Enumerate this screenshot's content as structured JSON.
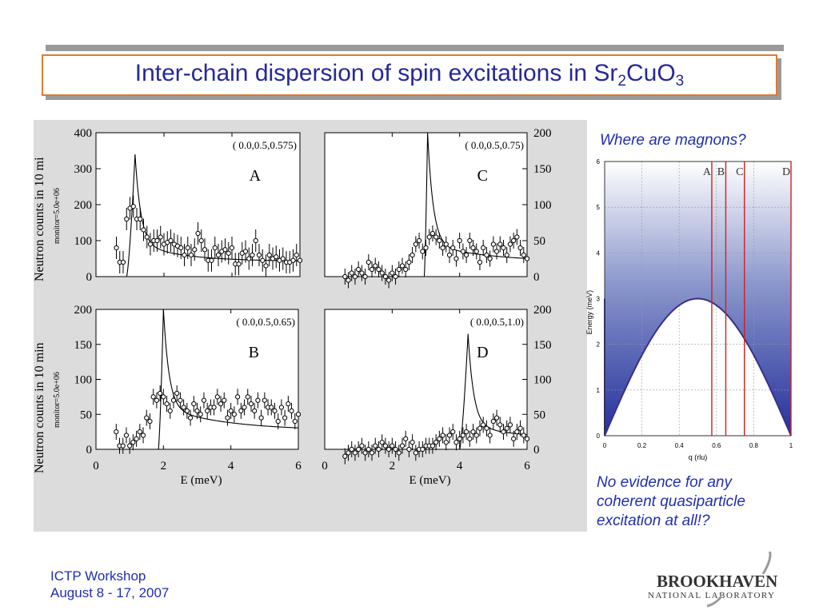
{
  "title": {
    "main": "Inter-chain dispersion of spin excitations in Sr",
    "sub1": "2",
    "mid": "CuO",
    "sub2": "3"
  },
  "right_top_note": "Where are magnons?",
  "right_bottom_note": [
    "No evidence for any",
    "coherent quasiparticle",
    "excitation at all!?"
  ],
  "footer": [
    "ICTP Workshop",
    "August 8 - 17, 2007"
  ],
  "logo": {
    "name": "BROOKHAVEN",
    "subtitle": "NATIONAL LABORATORY"
  },
  "figure": {
    "ylabel_top": "Neutron counts in 10 mi",
    "ylabel_bottom": "Neutron counts in 10 min",
    "monitor_label": "monitor=5.0e+06",
    "xlabel": "E (meV)",
    "x_ticks": [
      "0",
      "2",
      "4",
      "6"
    ]
  },
  "chart_data": [
    {
      "type": "scatter",
      "panel": "A",
      "q_label": "( 0.0,0.5,0.575)",
      "xlim": [
        0,
        6
      ],
      "ylim": [
        0,
        400
      ],
      "y_ticks": [
        0,
        100,
        200,
        300,
        400
      ],
      "x": [
        0.6,
        0.7,
        0.8,
        0.9,
        1.0,
        1.1,
        1.2,
        1.3,
        1.4,
        1.5,
        1.6,
        1.7,
        1.8,
        1.9,
        2.0,
        2.1,
        2.2,
        2.3,
        2.4,
        2.5,
        2.6,
        2.7,
        2.8,
        2.9,
        3.0,
        3.1,
        3.2,
        3.3,
        3.4,
        3.5,
        3.6,
        3.7,
        3.8,
        3.9,
        4.0,
        4.1,
        4.2,
        4.3,
        4.4,
        4.5,
        4.6,
        4.7,
        4.8,
        4.9,
        5.0,
        5.1,
        5.2,
        5.3,
        5.4,
        5.5,
        5.6,
        5.7,
        5.8,
        5.9,
        6.0
      ],
      "y": [
        80,
        40,
        40,
        160,
        190,
        195,
        160,
        160,
        130,
        110,
        90,
        100,
        100,
        110,
        90,
        95,
        100,
        90,
        85,
        80,
        60,
        80,
        60,
        75,
        120,
        100,
        75,
        45,
        45,
        80,
        60,
        70,
        75,
        65,
        80,
        35,
        35,
        65,
        70,
        50,
        60,
        100,
        60,
        45,
        30,
        60,
        50,
        55,
        45,
        50,
        40,
        40,
        45,
        60,
        45
      ],
      "fit": {
        "onset": 0.9,
        "peak_x": 1.15,
        "peak_y": 340,
        "tail_a": 95,
        "tail_b": 0.78
      }
    },
    {
      "type": "scatter",
      "panel": "C",
      "q_label": "( 0.0,0.5,0.75)",
      "xlim": [
        0,
        6
      ],
      "ylim": [
        0,
        200
      ],
      "y_ticks": [
        0,
        50,
        100,
        150,
        200
      ],
      "x": [
        0.6,
        0.7,
        0.8,
        0.9,
        1.0,
        1.1,
        1.2,
        1.3,
        1.4,
        1.5,
        1.6,
        1.7,
        1.8,
        1.9,
        2.0,
        2.1,
        2.2,
        2.3,
        2.4,
        2.5,
        2.6,
        2.7,
        2.8,
        2.9,
        3.0,
        3.1,
        3.2,
        3.3,
        3.4,
        3.5,
        3.6,
        3.7,
        3.8,
        3.9,
        4.0,
        4.1,
        4.2,
        4.3,
        4.4,
        4.5,
        4.6,
        4.7,
        4.8,
        4.9,
        5.0,
        5.1,
        5.2,
        5.3,
        5.4,
        5.5,
        5.6,
        5.7,
        5.8,
        5.9,
        6.0
      ],
      "y": [
        0,
        -5,
        5,
        0,
        10,
        5,
        0,
        20,
        10,
        15,
        10,
        5,
        0,
        -5,
        5,
        0,
        10,
        15,
        10,
        20,
        30,
        45,
        50,
        35,
        40,
        55,
        60,
        55,
        50,
        40,
        45,
        30,
        40,
        25,
        50,
        35,
        30,
        50,
        40,
        35,
        20,
        40,
        30,
        25,
        45,
        35,
        45,
        40,
        30,
        45,
        50,
        55,
        40,
        30,
        25
      ],
      "fit": {
        "onset": 2.95,
        "peak_x": 3.05,
        "peak_y": 200,
        "tail_a": 45,
        "tail_b": 0.55
      }
    },
    {
      "type": "scatter",
      "panel": "B",
      "q_label": "( 0.0,0.5,0.65)",
      "xlim": [
        0,
        6
      ],
      "ylim": [
        0,
        200
      ],
      "y_ticks": [
        0,
        50,
        100,
        150,
        200
      ],
      "x": [
        0.6,
        0.7,
        0.8,
        0.9,
        1.0,
        1.1,
        1.2,
        1.3,
        1.4,
        1.5,
        1.6,
        1.7,
        1.8,
        1.9,
        2.0,
        2.1,
        2.2,
        2.3,
        2.4,
        2.5,
        2.6,
        2.7,
        2.8,
        2.9,
        3.0,
        3.1,
        3.2,
        3.3,
        3.4,
        3.5,
        3.6,
        3.7,
        3.8,
        3.9,
        4.0,
        4.1,
        4.2,
        4.3,
        4.4,
        4.5,
        4.6,
        4.7,
        4.8,
        4.9,
        5.0,
        5.1,
        5.2,
        5.3,
        5.4,
        5.5,
        5.6,
        5.7,
        5.8,
        5.9,
        6.0
      ],
      "y": [
        25,
        5,
        5,
        20,
        5,
        10,
        15,
        25,
        20,
        45,
        40,
        75,
        70,
        80,
        75,
        65,
        55,
        70,
        80,
        70,
        60,
        55,
        45,
        65,
        55,
        50,
        70,
        55,
        60,
        60,
        75,
        65,
        70,
        45,
        55,
        50,
        75,
        55,
        60,
        75,
        65,
        55,
        70,
        45,
        70,
        60,
        60,
        55,
        40,
        60,
        45,
        65,
        55,
        40,
        50
      ],
      "fit": {
        "onset": 1.85,
        "peak_x": 2.0,
        "peak_y": 200,
        "tail_a": 60,
        "tail_b": 0.55
      }
    },
    {
      "type": "scatter",
      "panel": "D",
      "q_label": "( 0.0,0.5,1.0)",
      "xlim": [
        0,
        6
      ],
      "ylim": [
        0,
        200
      ],
      "y_ticks": [
        0,
        50,
        100,
        150,
        200
      ],
      "x": [
        0.6,
        0.7,
        0.8,
        0.9,
        1.0,
        1.1,
        1.2,
        1.3,
        1.4,
        1.5,
        1.6,
        1.7,
        1.8,
        1.9,
        2.0,
        2.1,
        2.2,
        2.3,
        2.4,
        2.5,
        2.6,
        2.7,
        2.8,
        2.9,
        3.0,
        3.1,
        3.2,
        3.3,
        3.4,
        3.5,
        3.6,
        3.7,
        3.8,
        3.9,
        4.0,
        4.1,
        4.2,
        4.3,
        4.4,
        4.5,
        4.6,
        4.7,
        4.8,
        4.9,
        5.0,
        5.1,
        5.2,
        5.3,
        5.4,
        5.5,
        5.6,
        5.7,
        5.8,
        5.9,
        6.0
      ],
      "y": [
        -10,
        -5,
        0,
        -5,
        0,
        5,
        -5,
        0,
        -5,
        5,
        0,
        10,
        5,
        0,
        5,
        0,
        -5,
        5,
        15,
        0,
        10,
        -5,
        0,
        0,
        5,
        5,
        5,
        10,
        15,
        20,
        10,
        20,
        25,
        10,
        15,
        20,
        25,
        15,
        25,
        20,
        30,
        35,
        30,
        20,
        40,
        45,
        35,
        25,
        30,
        35,
        15,
        25,
        30,
        20,
        15
      ],
      "fit": {
        "onset": 4.0,
        "peak_x": 4.25,
        "peak_y": 165,
        "tail_a": 35,
        "tail_b": 0.75
      }
    },
    {
      "type": "area",
      "panel": "dispersion",
      "xlabel": "q (rlu)",
      "ylabel": "Energy (meV)",
      "xlim": [
        0,
        1
      ],
      "ylim": [
        0,
        6
      ],
      "x_ticks": [
        "0",
        "0.2",
        "0.4",
        "0.6",
        "0.8",
        "1"
      ],
      "y_ticks": [
        "0",
        "1",
        "2",
        "3",
        "4",
        "5",
        "6"
      ],
      "curve": "E = 3|sin(pi q)|",
      "marker_lines": [
        {
          "label": "A",
          "q": 0.575
        },
        {
          "label": "B",
          "q": 0.65
        },
        {
          "label": "C",
          "q": 0.75
        },
        {
          "label": "D",
          "q": 1.0
        }
      ]
    }
  ]
}
